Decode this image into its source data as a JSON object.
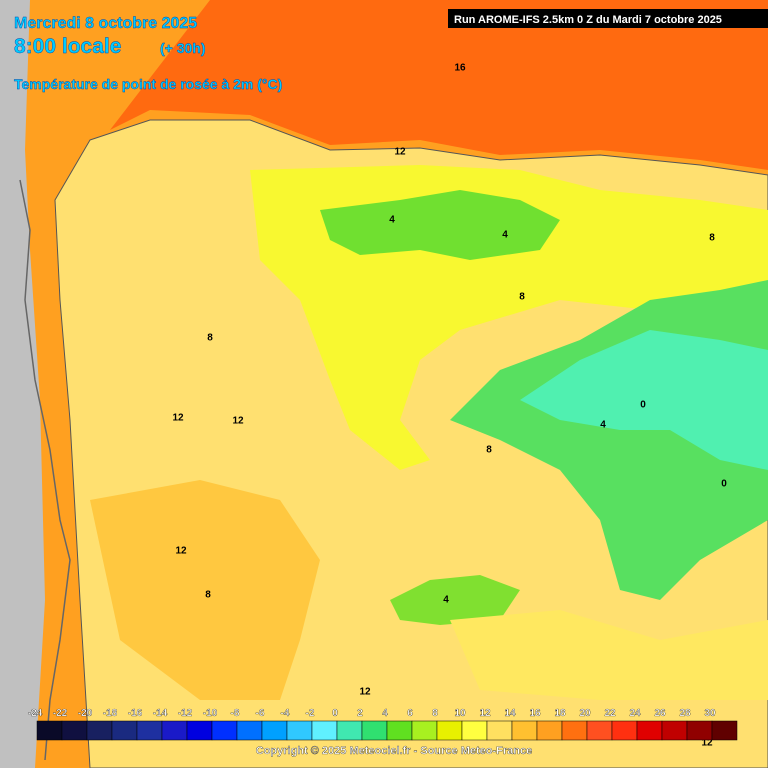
{
  "header": {
    "date": "Mercredi 8 octobre 2025",
    "time": "8:00 locale",
    "lead": "(+ 30h)",
    "field": "Température de point de rosée à 2m (°C)",
    "run": "Run AROME-IFS 2.5km 0 Z du Mardi 7 octobre 2025"
  },
  "colorbar": {
    "ticks": [
      -24,
      -22,
      -20,
      -18,
      -16,
      -14,
      -12,
      -10,
      -8,
      -6,
      -4,
      -2,
      0,
      2,
      4,
      6,
      8,
      10,
      12,
      14,
      16,
      18,
      20,
      22,
      24,
      26,
      28,
      30
    ],
    "colors": [
      "#0a0a28",
      "#101040",
      "#182060",
      "#1a2a80",
      "#1e30a0",
      "#1a1ac8",
      "#0000e0",
      "#0030ff",
      "#0070ff",
      "#00a0ff",
      "#30c8ff",
      "#60f0ff",
      "#40e8b0",
      "#30e070",
      "#60e020",
      "#a8f020",
      "#e8f000",
      "#ffff40",
      "#ffe060",
      "#ffc030",
      "#ffa020",
      "#ff7010",
      "#ff5020",
      "#ff3010",
      "#e00000",
      "#c00000",
      "#900000",
      "#600000"
    ]
  },
  "contour_labels": [
    "16",
    "12",
    "4",
    "4",
    "8",
    "8",
    "12",
    "12",
    "12",
    "0",
    "4",
    "8",
    "0",
    "8",
    "4",
    "12",
    "8",
    "12"
  ],
  "footer": {
    "copyright": "Copyright © 2025 Meteociel.fr - Source Meteo-France"
  }
}
